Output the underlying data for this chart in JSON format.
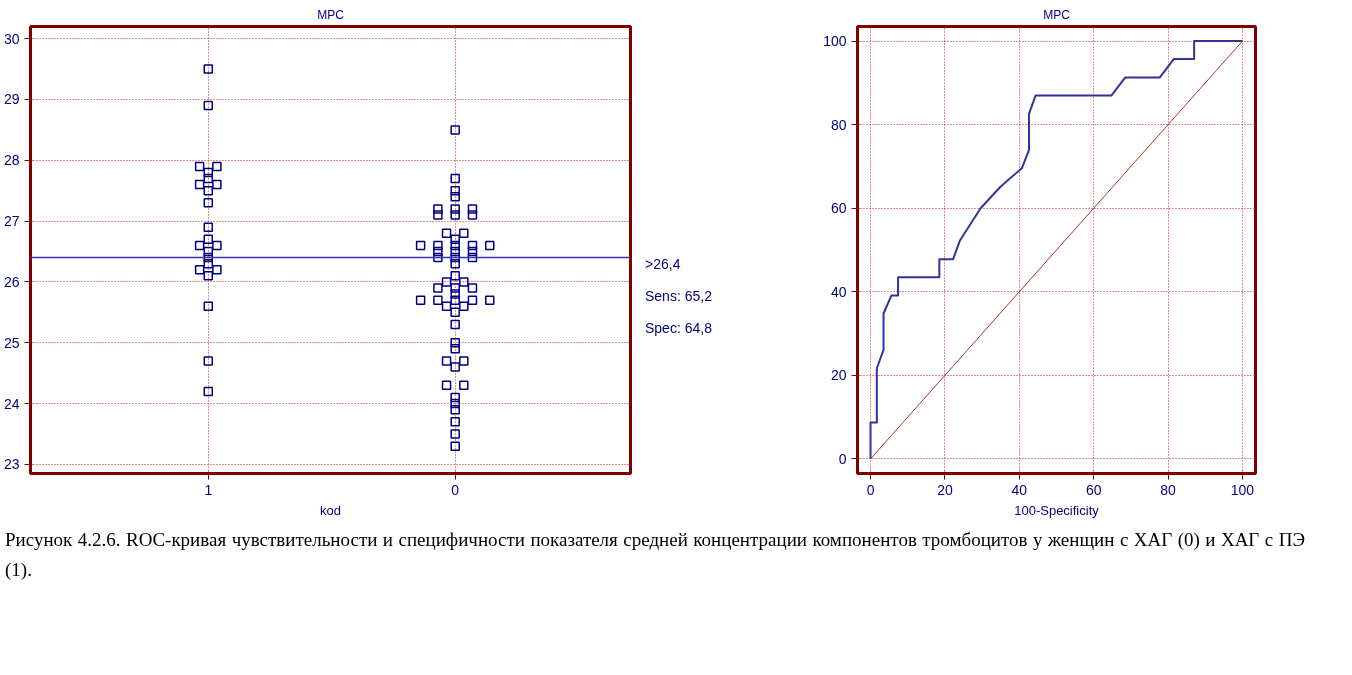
{
  "chart_data": [
    {
      "type": "scatter",
      "title": "MPC",
      "xlabel": "kod",
      "categories": [
        "1",
        "0"
      ],
      "series": [
        {
          "color": "#000080",
          "x": [
            "1",
            "1",
            "1",
            "1",
            "1",
            "1",
            "1",
            "1",
            "1",
            "1",
            "1",
            "1",
            "1",
            "1",
            "1",
            "1",
            "1",
            "1",
            "1",
            "1",
            "1",
            "1",
            "1"
          ],
          "values": [
            29.5,
            28.9,
            27.9,
            27.9,
            27.8,
            27.7,
            27.6,
            27.6,
            27.5,
            27.3,
            26.9,
            26.7,
            26.6,
            26.6,
            26.5,
            26.4,
            26.3,
            26.2,
            26.2,
            26.1,
            25.6,
            24.7,
            24.2
          ]
        },
        {
          "color": "#000080",
          "x": [
            "0",
            "0",
            "0",
            "0",
            "0",
            "0",
            "0",
            "0",
            "0",
            "0",
            "0",
            "0",
            "0",
            "0",
            "0",
            "0",
            "0",
            "0",
            "0",
            "0",
            "0",
            "0",
            "0",
            "0",
            "0",
            "0",
            "0",
            "0",
            "0",
            "0",
            "0",
            "0",
            "0",
            "0",
            "0",
            "0",
            "0",
            "0",
            "0",
            "0",
            "0",
            "0",
            "0",
            "0",
            "0",
            "0",
            "0",
            "0",
            "0",
            "0",
            "0",
            "0",
            "0",
            "0"
          ],
          "values": [
            28.5,
            27.7,
            27.5,
            27.4,
            27.2,
            27.2,
            27.2,
            27.1,
            27.1,
            27.1,
            26.8,
            26.8,
            26.7,
            26.6,
            26.6,
            26.6,
            26.6,
            26.6,
            26.5,
            26.5,
            26.5,
            26.4,
            26.4,
            26.4,
            26.3,
            26.1,
            26.0,
            26.0,
            25.9,
            25.9,
            25.9,
            25.8,
            25.7,
            25.7,
            25.7,
            25.7,
            25.7,
            25.6,
            25.6,
            25.5,
            25.3,
            25.0,
            24.9,
            24.7,
            24.7,
            24.6,
            24.3,
            24.3,
            24.1,
            24.0,
            23.9,
            23.7,
            23.5,
            23.3
          ]
        }
      ],
      "ylim": [
        22.85,
        30.2
      ],
      "yticks": [
        23,
        24,
        25,
        26,
        27,
        28,
        29,
        30
      ],
      "grid": true,
      "marker": "square",
      "ref_lines": [
        {
          "axis": "y",
          "value": 26.4,
          "label": ">26,4",
          "color": "#3333aa"
        }
      ],
      "annotations": [
        "Sens: 65,2",
        "Spec: 64,8"
      ]
    },
    {
      "type": "line",
      "title": "MPC",
      "xlabel": "100-Specificity",
      "series": [
        {
          "color": "#333399",
          "x": [
            0,
            0,
            1.7,
            1.7,
            3.5,
            3.5,
            5.6,
            7.4,
            7.4,
            18.5,
            18.5,
            22.2,
            24,
            29.6,
            35,
            40.7,
            42.6,
            42.6,
            44.4,
            64.8,
            68.5,
            77.8,
            81.5,
            87,
            87,
            100
          ],
          "values": [
            0,
            8.7,
            8.7,
            21.7,
            26.1,
            34.8,
            39.1,
            39.1,
            43.5,
            43.5,
            47.8,
            47.8,
            52.2,
            60,
            65.2,
            69.6,
            73.9,
            82.6,
            87,
            87,
            91.3,
            91.3,
            95.7,
            95.7,
            100,
            100
          ]
        },
        {
          "type": "line",
          "color": "#b03030",
          "x": [
            0,
            100
          ],
          "values": [
            0,
            100
          ]
        }
      ],
      "xlim": [
        -3.5,
        103.5
      ],
      "ylim": [
        -3.5,
        103.5
      ],
      "xticks": [
        0,
        20,
        40,
        60,
        80,
        100
      ],
      "yticks": [
        0,
        20,
        40,
        60,
        80,
        100
      ],
      "grid": true,
      "marker": "none",
      "line_style": "solid",
      "annotations": [
        "Рисунок 4.2.6. ROC-кривая чувствительности и специфичности показателя средней концентрации компонентов тромбоцитов у женщин с ХАГ (0) и ХАГ с ПЭ (1)."
      ]
    }
  ]
}
